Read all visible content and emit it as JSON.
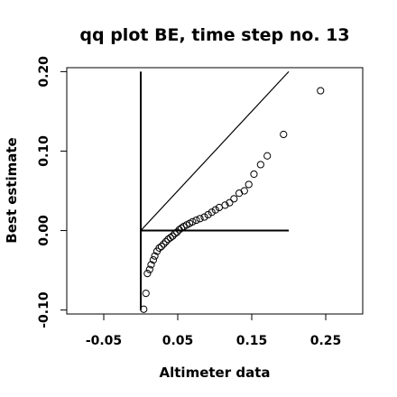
{
  "chart_data": {
    "type": "scatter",
    "title": "qq plot BE, time step no. 13",
    "xlabel": "Altimeter data",
    "ylabel": "Best estimate",
    "xlim": [
      -0.1,
      0.3
    ],
    "ylim": [
      -0.105,
      0.205
    ],
    "x_ticks": [
      -0.05,
      0.05,
      0.15,
      0.25
    ],
    "x_tick_labels": [
      "-0.05",
      "0.05",
      "0.15",
      "0.25"
    ],
    "y_ticks": [
      -0.1,
      0.0,
      0.1,
      0.2
    ],
    "y_tick_labels": [
      "-0.10",
      "0.00",
      "0.10",
      "0.20"
    ],
    "grid": false,
    "legend": "none",
    "reference_lines": [
      {
        "kind": "identity",
        "x": [
          0.0,
          0.2
        ],
        "y": [
          0.0,
          0.2
        ]
      },
      {
        "kind": "vertical",
        "x": [
          0.0,
          0.0
        ],
        "y": [
          -0.1,
          0.2
        ]
      },
      {
        "kind": "horizontal",
        "x": [
          0.0,
          0.2
        ],
        "y": [
          0.0,
          0.0
        ]
      }
    ],
    "points": [
      [
        0.004,
        -0.099
      ],
      [
        0.007,
        -0.079
      ],
      [
        0.009,
        -0.054
      ],
      [
        0.012,
        -0.049
      ],
      [
        0.014,
        -0.043
      ],
      [
        0.017,
        -0.037
      ],
      [
        0.019,
        -0.032
      ],
      [
        0.022,
        -0.026
      ],
      [
        0.025,
        -0.022
      ],
      [
        0.028,
        -0.02
      ],
      [
        0.031,
        -0.017
      ],
      [
        0.034,
        -0.014
      ],
      [
        0.037,
        -0.011
      ],
      [
        0.04,
        -0.009
      ],
      [
        0.043,
        -0.007
      ],
      [
        0.046,
        -0.004
      ],
      [
        0.049,
        -0.002
      ],
      [
        0.052,
        0.001
      ],
      [
        0.055,
        0.003
      ],
      [
        0.058,
        0.005
      ],
      [
        0.062,
        0.007
      ],
      [
        0.066,
        0.009
      ],
      [
        0.07,
        0.011
      ],
      [
        0.075,
        0.013
      ],
      [
        0.08,
        0.015
      ],
      [
        0.086,
        0.017
      ],
      [
        0.091,
        0.02
      ],
      [
        0.096,
        0.023
      ],
      [
        0.101,
        0.026
      ],
      [
        0.106,
        0.029
      ],
      [
        0.114,
        0.032
      ],
      [
        0.12,
        0.035
      ],
      [
        0.126,
        0.04
      ],
      [
        0.133,
        0.047
      ],
      [
        0.14,
        0.05
      ],
      [
        0.146,
        0.058
      ],
      [
        0.153,
        0.071
      ],
      [
        0.162,
        0.083
      ],
      [
        0.171,
        0.094
      ],
      [
        0.193,
        0.121
      ],
      [
        0.243,
        0.176
      ]
    ]
  }
}
